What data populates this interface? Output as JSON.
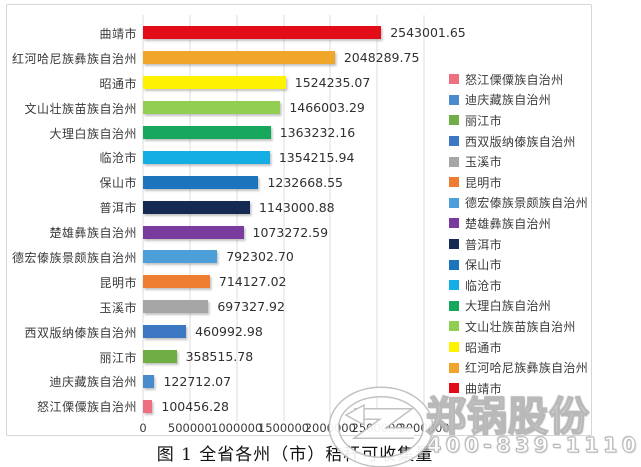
{
  "figure": {
    "caption": "图 1 全省各州（市）秸秆可收集量"
  },
  "watermark": {
    "company": "郑锅股份",
    "phone": "400-839-1110"
  },
  "chart_data": {
    "type": "bar",
    "orientation": "horizontal",
    "title": "图 1 全省各州（市）秸秆可收集量",
    "categories": [
      "曲靖市",
      "红河哈尼族彝族自治州",
      "昭通市",
      "文山壮族苗族自治州",
      "大理白族自治州",
      "临沧市",
      "保山市",
      "普洱市",
      "楚雄彝族自治州",
      "德宏傣族景颇族自治州",
      "昆明市",
      "玉溪市",
      "西双版纳傣族自治州",
      "丽江市",
      "迪庆藏族自治州",
      "怒江傈僳族自治州"
    ],
    "values": [
      2543001.65,
      2048289.75,
      1524235.07,
      1466003.29,
      1363232.16,
      1354215.94,
      1232668.55,
      1143000.88,
      1073272.59,
      792302.7,
      714127.02,
      697327.92,
      460992.98,
      358515.78,
      122712.07,
      100456.28
    ],
    "value_labels": [
      "2543001.65",
      "2048289.75",
      "1524235.07",
      "1466003.29",
      "1363232.16",
      "1354215.94",
      "1232668.55",
      "1143000.88",
      "1073272.59",
      "792302.70",
      "714127.02",
      "697327.92",
      "460992.98",
      "358515.78",
      "122712.07",
      "100456.28"
    ],
    "colors": [
      "#E30D1A",
      "#EFA62B",
      "#FEF200",
      "#92CE51",
      "#16A75C",
      "#14ADE4",
      "#1B74BC",
      "#142A52",
      "#7A3B9E",
      "#4C9FD8",
      "#ED7D31",
      "#A6A6A6",
      "#3D77C2",
      "#6EAE45",
      "#4A8CCB",
      "#EE6F7F"
    ],
    "x_axis": {
      "min": 0,
      "max": 3000000,
      "tick_step": 500000,
      "ticks": [
        "0",
        "500000",
        "1000000",
        "1500000",
        "2000000",
        "2500000",
        "3000000"
      ]
    },
    "grid": true,
    "legend": {
      "position": "right",
      "entries": [
        {
          "label": "怒江傈僳族自治州",
          "color": "#EE6F7F"
        },
        {
          "label": "迪庆藏族自治州",
          "color": "#4A8CCB"
        },
        {
          "label": "丽江市",
          "color": "#6EAE45"
        },
        {
          "label": "西双版纳傣族自治州",
          "color": "#3D77C2"
        },
        {
          "label": "玉溪市",
          "color": "#A6A6A6"
        },
        {
          "label": "昆明市",
          "color": "#ED7D31"
        },
        {
          "label": "德宏傣族景颇族自治州",
          "color": "#4C9FD8"
        },
        {
          "label": "楚雄彝族自治州",
          "color": "#7A3B9E"
        },
        {
          "label": "普洱市",
          "color": "#142A52"
        },
        {
          "label": "保山市",
          "color": "#1B74BC"
        },
        {
          "label": "临沧市",
          "color": "#14ADE4"
        },
        {
          "label": "大理白族自治州",
          "color": "#16A75C"
        },
        {
          "label": "文山壮族苗族自治州",
          "color": "#92CE51"
        },
        {
          "label": "昭通市",
          "color": "#FEF200"
        },
        {
          "label": "红河哈尼族彝族自治州",
          "color": "#EFA62B"
        },
        {
          "label": "曲靖市",
          "color": "#E30D1A"
        }
      ]
    }
  }
}
